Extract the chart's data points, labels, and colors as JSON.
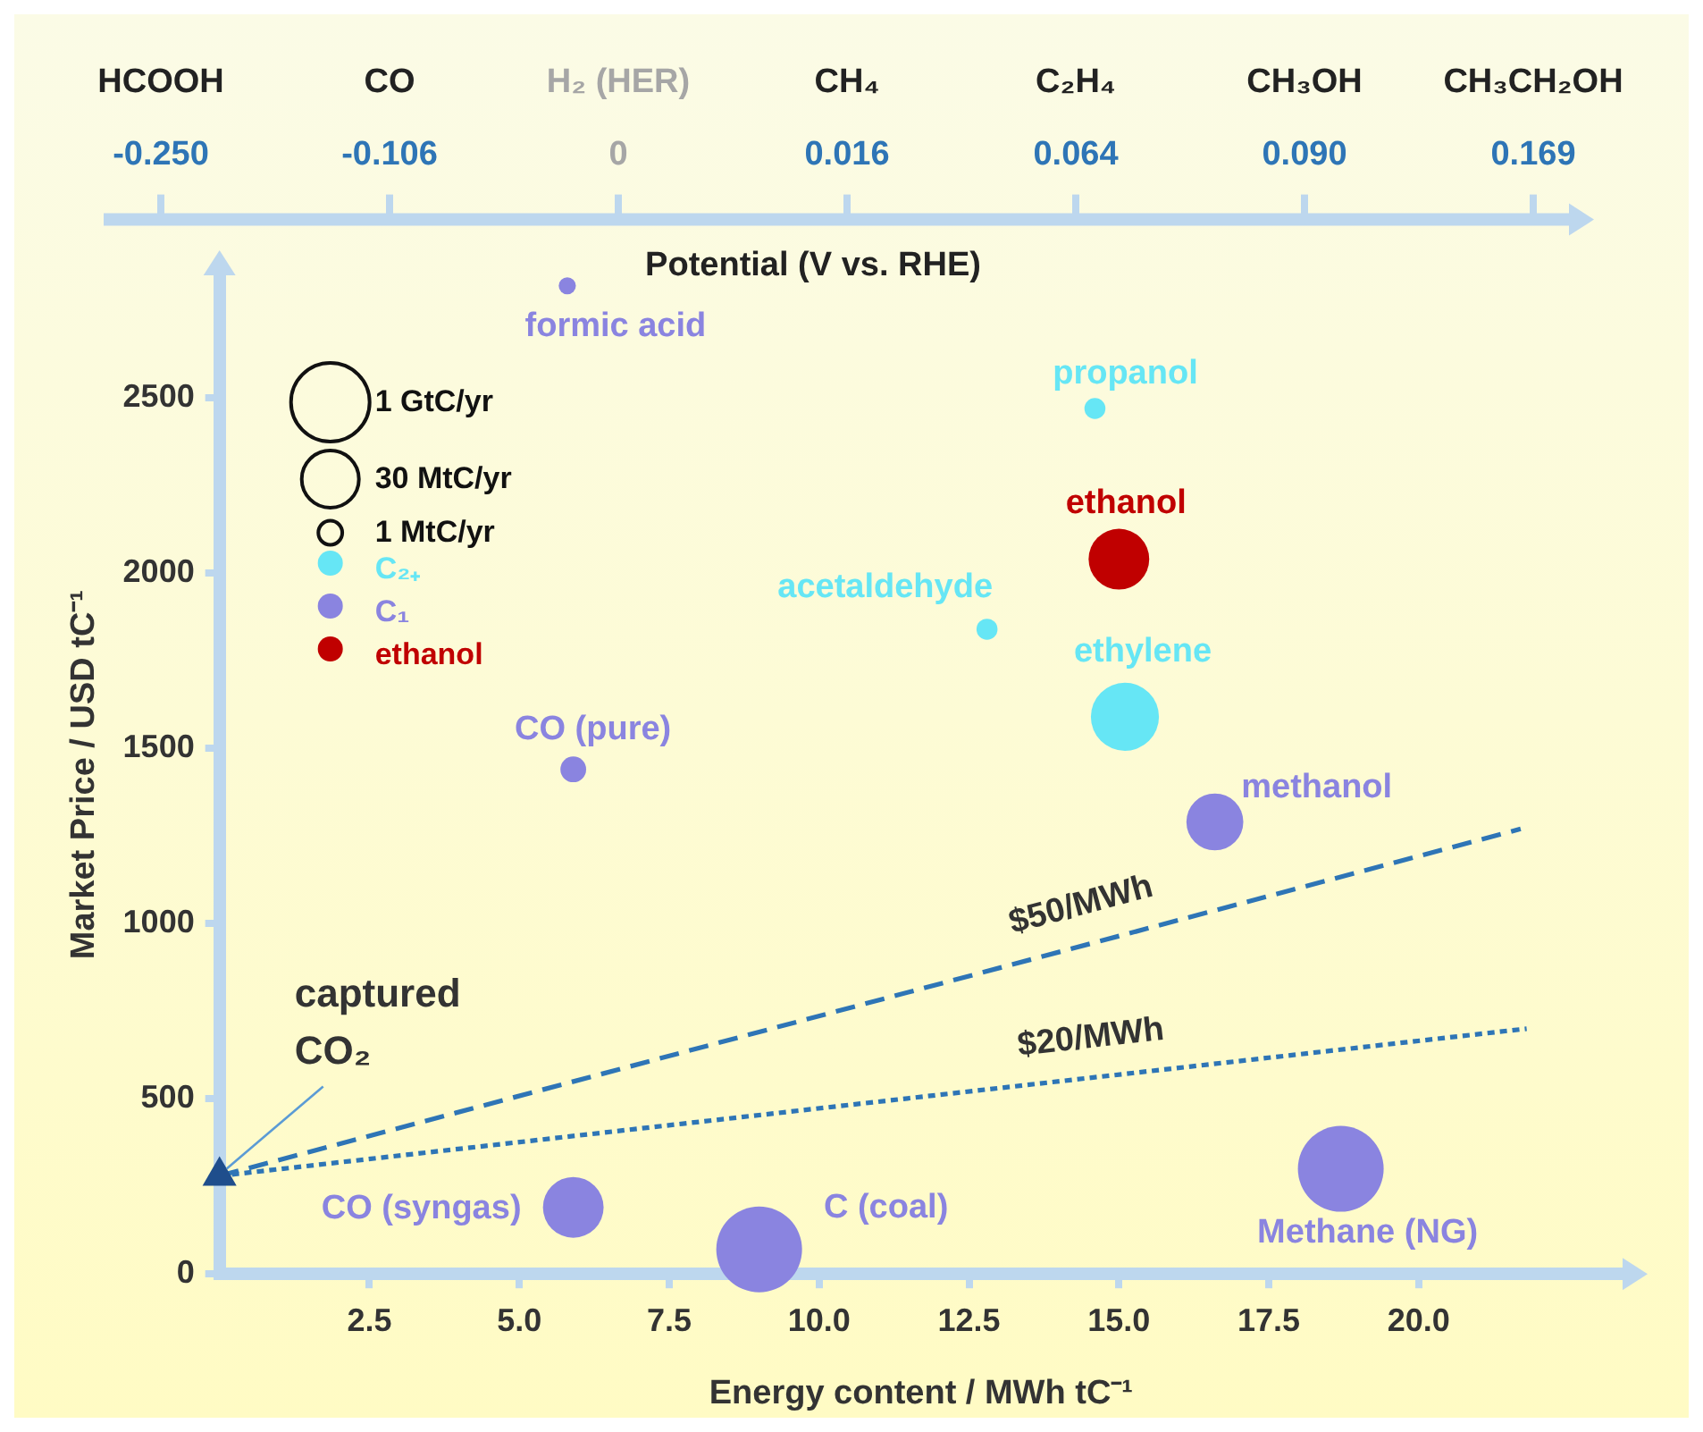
{
  "chart_data": [
    {
      "type": "other",
      "xlabel": "Potential (V vs. RHE)",
      "categories": [
        "HCOOH",
        "CO",
        "H₂ (HER)",
        "CH₄",
        "C₂H₄",
        "CH₃OH",
        "CH₃CH₂OH"
      ],
      "values": [
        -0.25,
        -0.106,
        0,
        0.016,
        0.064,
        0.09,
        0.169
      ],
      "value_labels": [
        "-0.250",
        "-0.106",
        "0",
        "0.016",
        "0.064",
        "0.090",
        "0.169"
      ]
    },
    {
      "type": "bubble",
      "xlabel": "Energy content / MWh tC⁻¹",
      "ylabel": "Market Price / USD tC⁻¹",
      "xlim": [
        0,
        23.4
      ],
      "ylim": [
        0,
        2850
      ],
      "xticks": [
        2.5,
        {
          "value": 5,
          "label": "5.0"
        },
        7.5,
        {
          "value": 10,
          "label": "10.0"
        },
        12.5,
        {
          "value": 15,
          "label": "15.0"
        },
        17.5,
        {
          "value": 20,
          "label": "20.0"
        }
      ],
      "yticks": [
        0,
        500,
        1000,
        1500,
        2000,
        2500
      ],
      "grid": false,
      "legend": "top left",
      "series": [
        {
          "name": "C₂₊",
          "type": "bubble",
          "color": "#66e6f5",
          "x": [
            14.6,
            12.8,
            15.1
          ],
          "values": [
            2470,
            1840,
            1590
          ],
          "sizes": [
            0.06,
            0.06,
            0.63
          ]
        },
        {
          "name": "C₁",
          "type": "bubble",
          "color": "#8a84e0",
          "x": [
            5.8,
            5.9,
            16.6,
            5.9,
            9.0,
            18.7
          ],
          "values": [
            2820,
            1440,
            1290,
            190,
            70,
            300
          ],
          "sizes": [
            0.04,
            0.09,
            0.44,
            0.5,
            1,
            1
          ]
        },
        {
          "name": "ethanol",
          "type": "bubble",
          "color": "#c00000",
          "x": [
            15.0
          ],
          "values": [
            2040
          ],
          "sizes": [
            0.5
          ]
        },
        {
          "type": "scatter",
          "marker": "triangle",
          "color": "#1f4e8c",
          "x": [
            0
          ],
          "values": [
            280
          ]
        },
        {
          "name": "$50/MWh",
          "type": "line",
          "line_style": "dashed",
          "color": "#2e75b6",
          "x": [
            0,
            21.7
          ],
          "values": [
            280,
            1270
          ]
        },
        {
          "name": "$20/MWh",
          "type": "line",
          "line_style": "dotted",
          "color": "#2e75b6",
          "x": [
            0,
            21.8
          ],
          "values": [
            280,
            700
          ]
        }
      ],
      "annotations": [
        {
          "text": "formic acid",
          "x": 5.8,
          "y": 2820
        },
        {
          "text": "propanol",
          "x": 14.6,
          "y": 2470
        },
        {
          "text": "ethanol",
          "x": 15.0,
          "y": 2040
        },
        {
          "text": "acetaldehyde",
          "x": 12.8,
          "y": 1840
        },
        {
          "text": "ethylene",
          "x": 15.1,
          "y": 1590
        },
        {
          "text": "CO (pure)",
          "x": 5.9,
          "y": 1440
        },
        {
          "text": "methanol",
          "x": 16.6,
          "y": 1290
        },
        {
          "text": "CO (syngas)",
          "x": 5.9,
          "y": 190
        },
        {
          "text": "C (coal)",
          "x": 9.0,
          "y": 70
        },
        {
          "text": "Methane (NG)",
          "x": 18.7,
          "y": 300
        },
        {
          "text": "captured CO₂",
          "x": 0,
          "y": 280
        },
        "1 GtC/yr",
        "30 MtC/yr",
        "1 MtC/yr"
      ]
    }
  ]
}
